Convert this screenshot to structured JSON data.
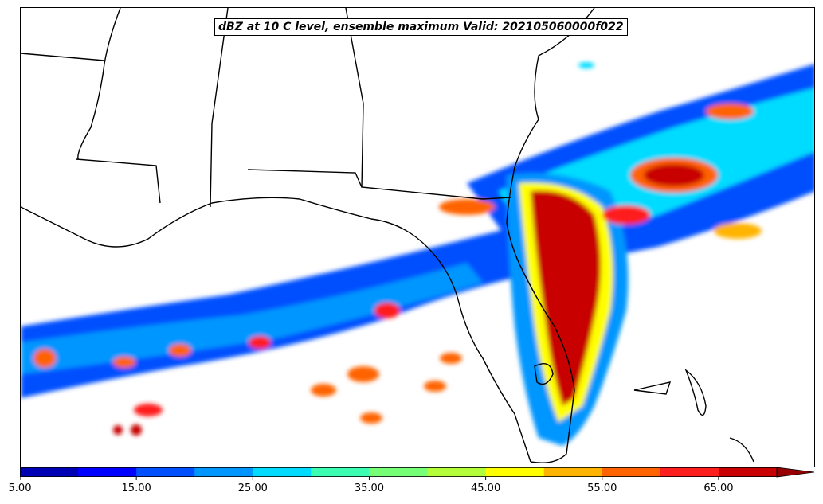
{
  "title": "dBZ at 10 C level, ensemble maximum Valid: 202105060000f022",
  "colorbar": {
    "min": 5,
    "max": 70,
    "step": 5,
    "extend": "max",
    "colors": [
      "#0000b4",
      "#0000ff",
      "#0050ff",
      "#0096ff",
      "#00dcff",
      "#3cffb4",
      "#78ff78",
      "#b4ff3c",
      "#ffff00",
      "#ffb400",
      "#ff6400",
      "#ff1e1e",
      "#c80000"
    ],
    "extend_color": "#960000",
    "tick_labels": [
      "5.00",
      "15.00",
      "25.00",
      "35.00",
      "45.00",
      "55.00",
      "65.00"
    ],
    "tick_values": [
      5,
      15,
      25,
      35,
      45,
      55,
      65
    ]
  }
}
